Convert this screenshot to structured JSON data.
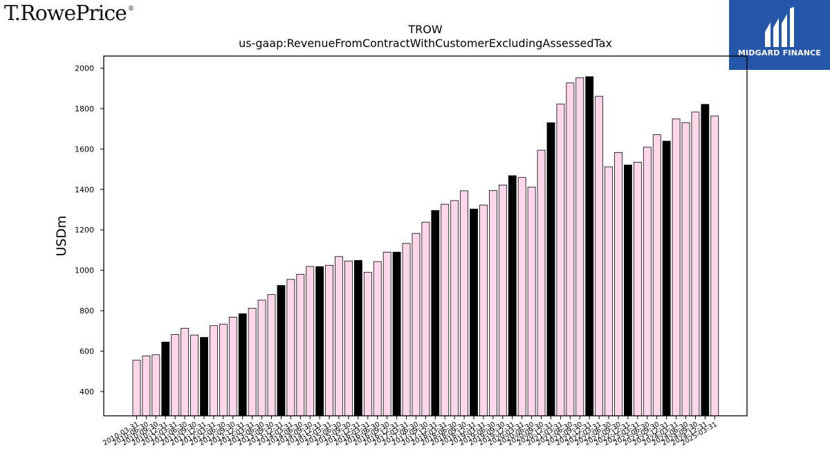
{
  "branding": {
    "left_logo": "T.RowePrice",
    "left_logo_mark": "®",
    "right_logo": "MIDGARD FINANCE"
  },
  "chart_data": {
    "type": "bar",
    "title": "TROW",
    "subtitle": "us-gaap:RevenueFromContractWithCustomerExcludingAssessedTax",
    "ylabel": "USDm",
    "xlabel": "",
    "ylim": [
      280,
      2060
    ],
    "yticks": [
      400,
      600,
      800,
      1000,
      1200,
      1400,
      1600,
      1800,
      2000
    ],
    "grid": false,
    "colors": {
      "quarter": "#ffd6ea",
      "year_end": "#000000",
      "edge": "#000000"
    },
    "categories": [
      "2010-03-31",
      "2010-06-30",
      "2010-09-30",
      "2010-12-31",
      "2011-03-31",
      "2011-06-30",
      "2011-09-30",
      "2011-12-31",
      "2012-03-31",
      "2012-06-30",
      "2012-09-30",
      "2012-12-31",
      "2013-03-31",
      "2013-06-30",
      "2013-09-30",
      "2013-12-31",
      "2014-03-31",
      "2014-06-30",
      "2014-09-30",
      "2014-12-31",
      "2015-03-31",
      "2015-06-30",
      "2015-09-30",
      "2015-12-31",
      "2016-03-31",
      "2016-06-30",
      "2016-09-30",
      "2016-12-31",
      "2017-03-31",
      "2017-06-30",
      "2017-09-30",
      "2017-12-31",
      "2018-03-31",
      "2018-06-30",
      "2018-09-30",
      "2018-12-31",
      "2019-03-31",
      "2019-06-30",
      "2019-09-30",
      "2019-12-31",
      "2020-03-31",
      "2020-06-30",
      "2020-09-30",
      "2020-12-31",
      "2021-03-31",
      "2021-06-30",
      "2021-09-30",
      "2021-12-31",
      "2022-03-31",
      "2022-06-30",
      "2022-09-30",
      "2022-12-31",
      "2023-03-31",
      "2023-06-30",
      "2023-09-30",
      "2023-12-31",
      "2024-03-31",
      "2024-06-30",
      "2024-09-30",
      "2024-12-31",
      "2025-03-31"
    ],
    "values": [
      555,
      576,
      582,
      645,
      682,
      713,
      680,
      668,
      726,
      733,
      768,
      785,
      812,
      852,
      880,
      925,
      955,
      980,
      1019,
      1018,
      1025,
      1068,
      1046,
      1049,
      990,
      1043,
      1090,
      1090,
      1133,
      1183,
      1238,
      1296,
      1327,
      1345,
      1393,
      1303,
      1323,
      1394,
      1422,
      1468,
      1460,
      1412,
      1594,
      1730,
      1823,
      1927,
      1953,
      1958,
      1861,
      1512,
      1583,
      1521,
      1535,
      1609,
      1671,
      1639,
      1749,
      1731,
      1783,
      1821,
      1763
    ],
    "highlight": [
      false,
      false,
      false,
      true,
      false,
      false,
      false,
      true,
      false,
      false,
      false,
      true,
      false,
      false,
      false,
      true,
      false,
      false,
      false,
      true,
      false,
      false,
      false,
      true,
      false,
      false,
      false,
      true,
      false,
      false,
      false,
      true,
      false,
      false,
      false,
      true,
      false,
      false,
      false,
      true,
      false,
      false,
      false,
      true,
      false,
      false,
      false,
      true,
      false,
      false,
      false,
      true,
      false,
      false,
      false,
      true,
      false,
      false,
      false,
      true,
      false
    ]
  }
}
